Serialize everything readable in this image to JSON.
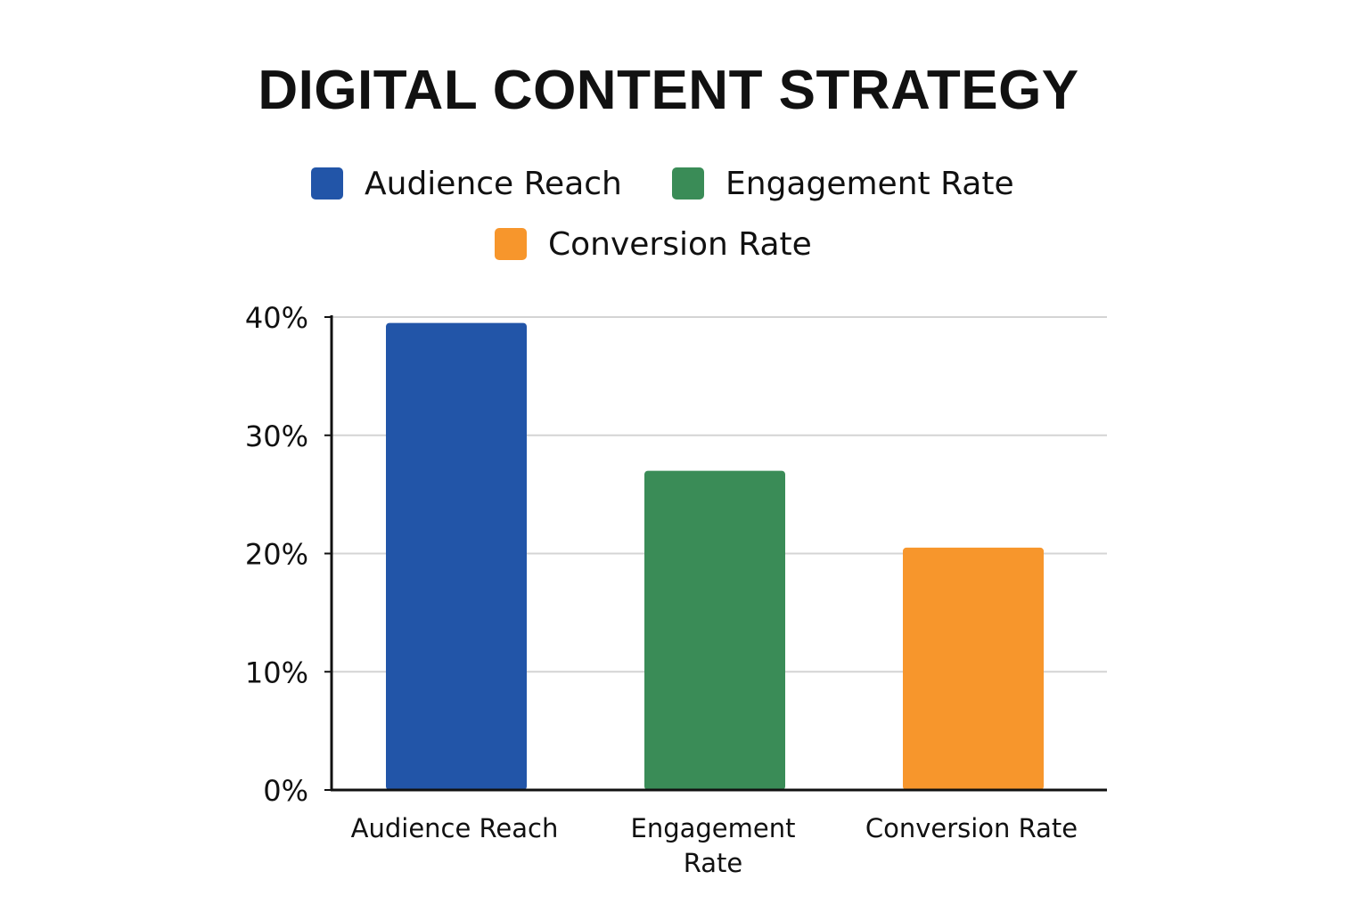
{
  "chart_data": {
    "type": "bar",
    "title": "DIGITAL CONTENT STRATEGY",
    "xlabel": "",
    "ylabel": "",
    "categories": [
      "Audience Reach",
      "Engagement Rate",
      "Conversion Rate"
    ],
    "category_label_lines": [
      [
        "Audience Reach"
      ],
      [
        "Engagement",
        "Rate"
      ],
      [
        "Conversion Rate"
      ]
    ],
    "values": [
      39.5,
      27,
      20.5
    ],
    "colors": [
      "#2255a8",
      "#3a8c57",
      "#f7962c"
    ],
    "ylim": [
      0,
      40
    ],
    "yticks": [
      0,
      10,
      20,
      30,
      40
    ],
    "ytick_labels": [
      "0%",
      "10%",
      "20%",
      "30%",
      "40%"
    ],
    "grid": true,
    "legend": {
      "placement": "top",
      "entries": [
        {
          "label": "Audience Reach",
          "color": "#2255a8"
        },
        {
          "label": "Engagement Rate",
          "color": "#3a8c57"
        },
        {
          "label": "Conversion Rate",
          "color": "#f7962c"
        }
      ]
    }
  }
}
